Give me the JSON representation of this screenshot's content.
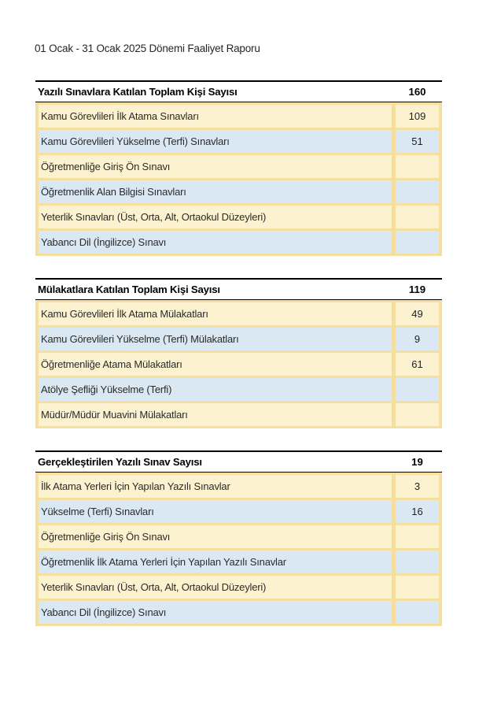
{
  "page": {
    "title": "01 Ocak - 31 Ocak 2025 Dönemi Faaliyet Raporu"
  },
  "colors": {
    "grid_yellow": "#F5DF9E",
    "row_cream": "#FCF2CF",
    "row_blue": "#DAE8F4",
    "header_rule": "#000000"
  },
  "tables": [
    {
      "header": {
        "label": "Yazılı Sınavlara Katılan Toplam Kişi Sayısı",
        "value": "160"
      },
      "rows": [
        {
          "label": "Kamu Görevlileri İlk Atama Sınavları",
          "value": "109"
        },
        {
          "label": "Kamu Görevlileri Yükselme (Terfi) Sınavları",
          "value": "51"
        },
        {
          "label": "Öğretmenliğe Giriş Ön Sınavı",
          "value": ""
        },
        {
          "label": "Öğretmenlik Alan Bilgisi Sınavları",
          "value": ""
        },
        {
          "label": "Yeterlik Sınavları (Üst, Orta, Alt, Ortaokul Düzeyleri)",
          "value": ""
        },
        {
          "label": "Yabancı Dil (İngilizce) Sınavı",
          "value": ""
        }
      ]
    },
    {
      "header": {
        "label": "Mülakatlara Katılan Toplam Kişi Sayısı",
        "value": "119"
      },
      "rows": [
        {
          "label": "Kamu Görevlileri İlk Atama Mülakatları",
          "value": "49"
        },
        {
          "label": "Kamu Görevlileri Yükselme (Terfi) Mülakatları",
          "value": "9"
        },
        {
          "label": "Öğretmenliğe Atama Mülakatları",
          "value": "61"
        },
        {
          "label": "Atölye Şefliği Yükselme (Terfi)",
          "value": ""
        },
        {
          "label": "Müdür/Müdür Muavini Mülakatları",
          "value": ""
        }
      ]
    },
    {
      "header": {
        "label": "Gerçekleştirilen Yazılı Sınav Sayısı",
        "value": "19"
      },
      "rows": [
        {
          "label": "İlk Atama Yerleri İçin Yapılan Yazılı Sınavlar",
          "value": "3"
        },
        {
          "label": "Yükselme (Terfi) Sınavları",
          "value": "16"
        },
        {
          "label": "Öğretmenliğe Giriş Ön Sınavı",
          "value": ""
        },
        {
          "label": "Öğretmenlik İlk Atama Yerleri İçin Yapılan Yazılı Sınavlar",
          "value": ""
        },
        {
          "label": "Yeterlik Sınavları (Üst, Orta, Alt, Ortaokul Düzeyleri)",
          "value": ""
        },
        {
          "label": "Yabancı Dil (İngilizce) Sınavı",
          "value": ""
        }
      ]
    }
  ]
}
